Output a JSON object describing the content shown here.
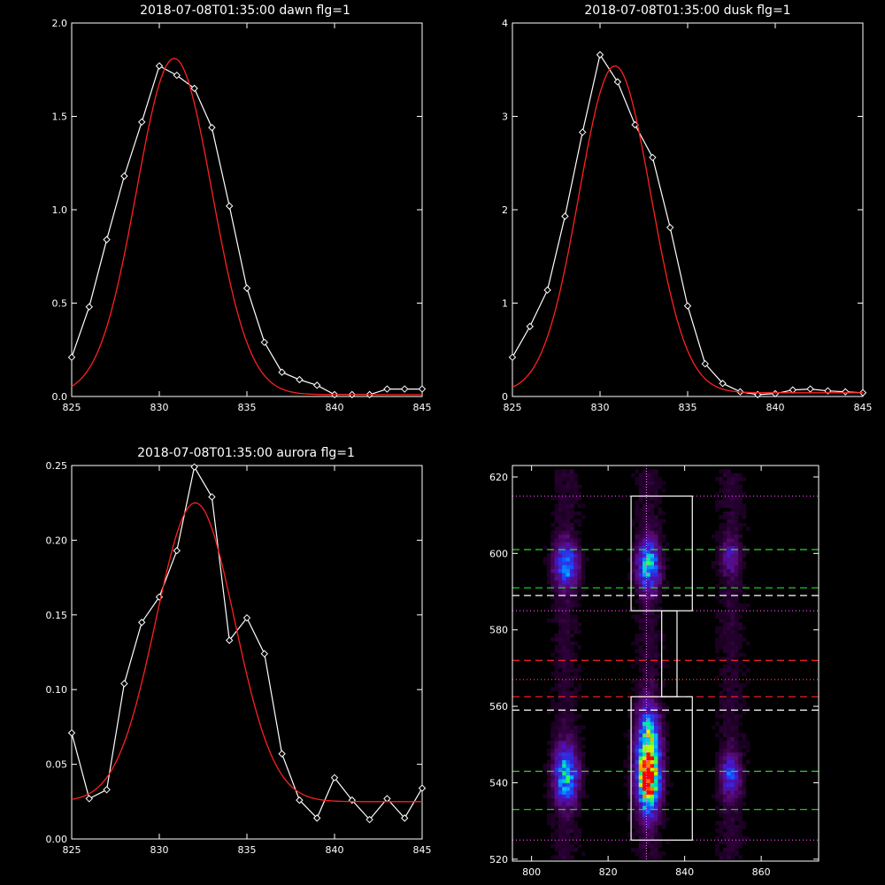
{
  "chart_data": [
    {
      "type": "line",
      "title": "2018-07-08T01:35:00 dawn flg=1",
      "xlim": [
        825,
        845
      ],
      "ylim": [
        0,
        2.0
      ],
      "xticks": [
        825,
        830,
        835,
        840,
        845
      ],
      "yticks": [
        0.0,
        0.5,
        1.0,
        1.5,
        2.0
      ],
      "ytick_labels": [
        "0.0",
        "0.5",
        "1.0",
        "1.5",
        "2.0"
      ],
      "series": [
        {
          "style": "data",
          "color": "#ffffff",
          "marker": "diamond",
          "x": [
            825,
            826,
            827,
            828,
            829,
            830,
            831,
            832,
            833,
            834,
            835,
            836,
            837,
            838,
            839,
            840,
            841,
            842,
            843,
            844,
            845
          ],
          "y": [
            0.21,
            0.48,
            0.84,
            1.18,
            1.47,
            1.77,
            1.72,
            1.65,
            1.44,
            1.02,
            0.58,
            0.29,
            0.13,
            0.09,
            0.06,
            0.01,
            0.01,
            0.01,
            0.04,
            0.04,
            0.04
          ]
        },
        {
          "style": "fit",
          "color": "#ff2020",
          "amp": 1.8,
          "center": 830.85,
          "sigma": 2.15,
          "offset": 0.01
        }
      ]
    },
    {
      "type": "line",
      "title": "2018-07-08T01:35:00 dusk flg=1",
      "xlim": [
        825,
        845
      ],
      "ylim": [
        0,
        4
      ],
      "xticks": [
        825,
        830,
        835,
        840,
        845
      ],
      "yticks": [
        0,
        1,
        2,
        3,
        4
      ],
      "ytick_labels": [
        "0",
        "1",
        "2",
        "3",
        "4"
      ],
      "series": [
        {
          "style": "data",
          "color": "#ffffff",
          "marker": "diamond",
          "x": [
            825,
            826,
            827,
            828,
            829,
            830,
            831,
            832,
            833,
            834,
            835,
            836,
            837,
            838,
            839,
            840,
            841,
            842,
            843,
            844,
            845
          ],
          "y": [
            0.42,
            0.75,
            1.14,
            1.93,
            2.83,
            3.66,
            3.37,
            2.91,
            2.56,
            1.81,
            0.97,
            0.35,
            0.14,
            0.05,
            0.02,
            0.03,
            0.07,
            0.08,
            0.06,
            0.05,
            0.04
          ]
        },
        {
          "style": "fit",
          "color": "#ff2020",
          "amp": 3.5,
          "center": 830.85,
          "sigma": 2.05,
          "offset": 0.04
        }
      ]
    },
    {
      "type": "line",
      "title": "2018-07-08T01:35:00 aurora flg=1",
      "xlim": [
        825,
        845
      ],
      "ylim": [
        0,
        0.25
      ],
      "xticks": [
        825,
        830,
        835,
        840,
        845
      ],
      "yticks": [
        0.0,
        0.05,
        0.1,
        0.15,
        0.2,
        0.25
      ],
      "ytick_labels": [
        "0.00",
        "0.05",
        "0.10",
        "0.15",
        "0.20",
        "0.25"
      ],
      "series": [
        {
          "style": "data",
          "color": "#ffffff",
          "marker": "diamond",
          "x": [
            825,
            826,
            827,
            828,
            829,
            830,
            831,
            832,
            833,
            834,
            835,
            836,
            837,
            838,
            839,
            840,
            841,
            842,
            843,
            844,
            845
          ],
          "y": [
            0.071,
            0.027,
            0.033,
            0.104,
            0.145,
            0.162,
            0.193,
            0.249,
            0.229,
            0.133,
            0.148,
            0.124,
            0.057,
            0.026,
            0.014,
            0.041,
            0.026,
            0.013,
            0.027,
            0.014,
            0.034
          ]
        },
        {
          "style": "fit",
          "color": "#ff2020",
          "amp": 0.2,
          "center": 832.05,
          "sigma": 2.25,
          "offset": 0.025
        }
      ]
    },
    {
      "type": "heatmap",
      "xlim": [
        795,
        875
      ],
      "ylim": [
        519.5,
        623
      ],
      "xticks": [
        800,
        820,
        840,
        860
      ],
      "yticks": [
        520,
        540,
        560,
        580,
        600,
        620
      ],
      "blobs": [
        {
          "x": 830.5,
          "y": 541,
          "sx": 2.0,
          "sy": 6.0,
          "amp": 1.0
        },
        {
          "x": 830.5,
          "y": 552,
          "sx": 2.0,
          "sy": 6.0,
          "amp": 0.55
        },
        {
          "x": 830.5,
          "y": 597,
          "sx": 2.0,
          "sy": 4.5,
          "amp": 0.55
        },
        {
          "x": 809,
          "y": 542,
          "sx": 2.2,
          "sy": 5.0,
          "amp": 0.55
        },
        {
          "x": 809,
          "y": 597,
          "sx": 2.2,
          "sy": 4.0,
          "amp": 0.45
        },
        {
          "x": 852,
          "y": 542,
          "sx": 1.8,
          "sy": 4.0,
          "amp": 0.35
        },
        {
          "x": 852,
          "y": 599,
          "sx": 1.8,
          "sy": 3.0,
          "amp": 0.22
        }
      ],
      "overlay": {
        "vline_dotted_x": 830,
        "box_top": {
          "x": [
            826,
            842
          ],
          "y": [
            585,
            615
          ]
        },
        "box_mid": {
          "x": [
            834,
            838
          ],
          "y": [
            562.5,
            585
          ]
        },
        "box_bottom": {
          "x": [
            826,
            842
          ],
          "y": [
            525,
            562.5
          ]
        },
        "white_dashed_y": [
          589,
          559
        ],
        "green_dashed_y": [
          601,
          591,
          543,
          533
        ],
        "red_dashed_y": [
          572,
          562.5
        ],
        "magenta_dotted_y": [
          615,
          585,
          567,
          525
        ],
        "red_dotted_y": [
          567
        ]
      }
    }
  ]
}
